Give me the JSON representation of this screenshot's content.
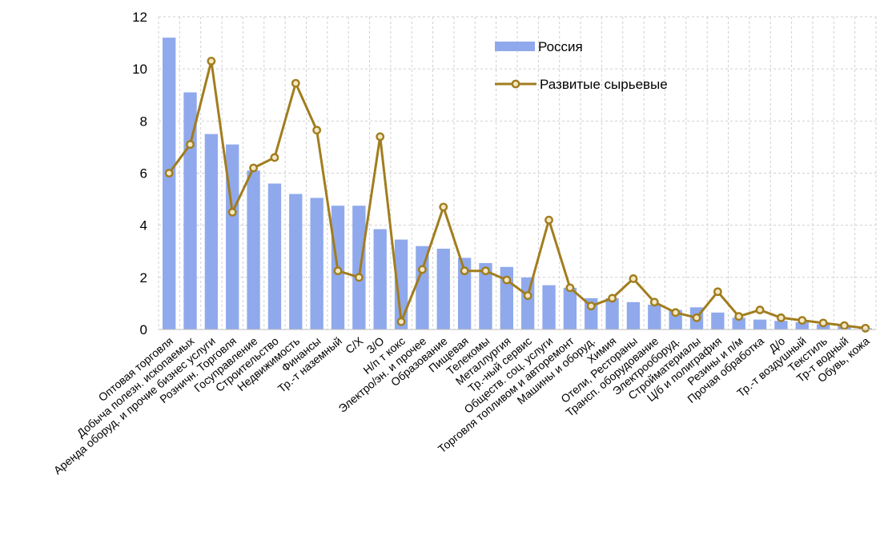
{
  "chart_data": {
    "type": "bar",
    "title": "",
    "xlabel": "",
    "ylabel": "",
    "ylim": [
      0,
      12
    ],
    "yticks": [
      0,
      2,
      4,
      6,
      8,
      10,
      12
    ],
    "grid": "dashed vertical and horizontal",
    "legend_position": "top-right",
    "categories": [
      "Оптовая  торговля",
      "Добыча полезн. ископаемых",
      "Аренда оборуд. и прочие бизнес услуги",
      "Розничн. Торговля",
      "Госуправление",
      "Строительство",
      "Недвижимость",
      "Финансы",
      "Тр.-т наземный",
      "С/Х",
      "З/О",
      "Н/п т кокс",
      "Электро/эн. и прочее",
      "Образование",
      "Пищевая",
      "Телекомы",
      "Металлургия",
      "Тр.-ный сервис",
      "Обществ. соц. услуги",
      "Торговля топливом и авторемонт",
      "Машины и оборуд.",
      "Химия",
      "Отели, Рестораны",
      "Трансп. оборудование",
      "Электрообоpуд.",
      "Стройматериалы",
      "Ц/б и полиграфия",
      "Резины и п/м",
      "Прочая обработка",
      "Д/о",
      "Тр.-т воздушный",
      "Текстиль",
      "Тр-т водный",
      "Обувь, кожа"
    ],
    "series": [
      {
        "name": "Россия",
        "kind": "bar",
        "color": "#8fa9ec",
        "values": [
          11.2,
          9.1,
          7.5,
          7.1,
          6.1,
          5.6,
          5.2,
          5.05,
          4.75,
          4.75,
          3.85,
          3.45,
          3.2,
          3.1,
          2.75,
          2.55,
          2.4,
          2.0,
          1.7,
          1.6,
          1.2,
          1.2,
          1.05,
          0.95,
          0.75,
          0.85,
          0.65,
          0.45,
          0.38,
          0.33,
          0.28,
          0.2,
          0.15,
          0.05
        ]
      },
      {
        "name": "Развитые сырьевые",
        "kind": "line",
        "color": "#a17d1e",
        "values": [
          6.0,
          7.1,
          10.3,
          4.5,
          6.2,
          6.6,
          9.45,
          7.65,
          2.25,
          2.0,
          7.4,
          0.3,
          2.3,
          4.7,
          2.25,
          2.25,
          1.9,
          1.3,
          4.2,
          1.6,
          0.9,
          1.2,
          1.95,
          1.05,
          0.65,
          0.45,
          1.45,
          0.5,
          0.75,
          0.45,
          0.35,
          0.25,
          0.15,
          0.05
        ]
      }
    ]
  }
}
